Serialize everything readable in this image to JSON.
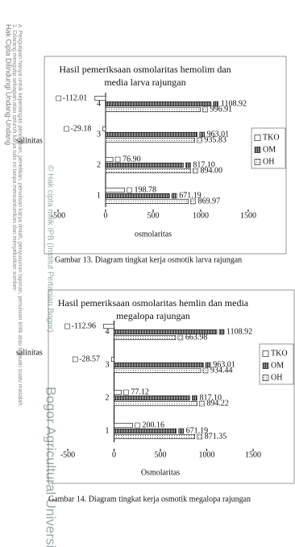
{
  "chart_data": [
    {
      "type": "bar",
      "orientation": "horizontal",
      "title": "Hasil pemeriksaan osmolaritas hemolim dan media larva rajungan",
      "xlabel": "osmolaritas",
      "ylabel": "salinitas",
      "categories": [
        "1",
        "2",
        "3",
        "4"
      ],
      "series": [
        {
          "name": "TKO",
          "color": "#ffffff",
          "values": [
            198.78,
            76.9,
            -29.18,
            -112.01
          ],
          "value_labels": [
            "198.78",
            "76.90",
            "-29.18",
            "-112.01"
          ]
        },
        {
          "name": "OM",
          "color": "#444444",
          "values": [
            671.19,
            817.1,
            963.01,
            1108.92
          ],
          "value_labels": [
            "671.19",
            "817.10",
            "963.01",
            "1108.92"
          ]
        },
        {
          "name": "OH",
          "color": "#eeeeee",
          "values": [
            869.97,
            894.0,
            935.83,
            996.91
          ],
          "value_labels": [
            "869.97",
            "894.00",
            "935.83",
            "996.91"
          ]
        }
      ],
      "xlim": [
        -500,
        1500
      ],
      "xticks": [
        -500,
        0,
        500,
        1000,
        1500
      ],
      "legend": "right",
      "caption": "Gambar 13. Diagram tingkat kerja osmotik larva rajungan"
    },
    {
      "type": "bar",
      "orientation": "horizontal",
      "title": "Hasil pemeriksaan osmolaritas hemlin dan media megalopa rajungan",
      "xlabel": "Osmolaritas",
      "ylabel": "salinitas",
      "categories": [
        "1",
        "2",
        "3",
        "4"
      ],
      "series": [
        {
          "name": "TKO",
          "color": "#ffffff",
          "values": [
            200.16,
            77.12,
            -28.57,
            -112.96
          ],
          "value_labels": [
            "200.16",
            "77.12",
            "-28.57",
            "-112.96"
          ]
        },
        {
          "name": "OM",
          "color": "#444444",
          "values": [
            671.19,
            817.1,
            963.01,
            1108.92
          ],
          "value_labels": [
            "671.19",
            "817.10",
            "963.01",
            "1108.92"
          ]
        },
        {
          "name": "OH",
          "color": "#eeeeee",
          "values": [
            871.35,
            894.22,
            934.44,
            663.98
          ],
          "value_labels": [
            "871.35",
            "894.22",
            "934.44",
            "663.98"
          ]
        }
      ],
      "xlim": [
        -500,
        1500
      ],
      "xticks": [
        -500,
        0,
        500,
        1000,
        1500
      ],
      "legend": "right",
      "caption": "Gambar 14. Diagram tingkat kerja osmotik megalopa rajungan"
    }
  ],
  "watermark": [
    "Hak Cipta Dilindungi Undang-Undang",
    "1. Dilarang mengutip sebagian atau seluruh karya tulis ini tanpa mencantumkan dan menyebutkan sumber:",
    "a. Pengutipan hanya untuk kepentingan pendidikan, penelitian, penulisan karya ilmiah, penyusunan laporan, penulisan kritik atau tinjauan suatu masalah.",
    "© Hak cipta milik IPB (Institut Pertanian Bogor)",
    "Bogor Agricultural University"
  ]
}
